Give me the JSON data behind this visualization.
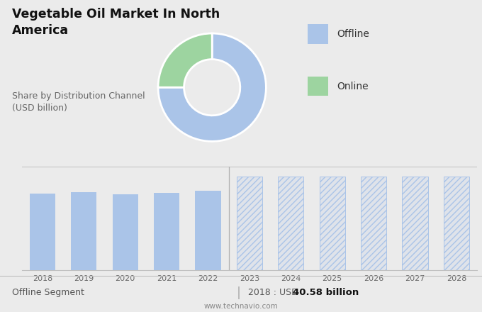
{
  "title_main": "Vegetable Oil Market In North\nAmerica",
  "subtitle": "Share by Distribution Channel\n(USD billion)",
  "donut_values": [
    75,
    25
  ],
  "donut_colors": [
    "#aac4e8",
    "#9dd4a0"
  ],
  "donut_labels": [
    "Offline",
    "Online"
  ],
  "legend_colors": [
    "#aac4e8",
    "#9dd4a0"
  ],
  "bar_years": [
    2018,
    2019,
    2020,
    2021,
    2022
  ],
  "bar_values": [
    40.58,
    41.5,
    40.2,
    41.0,
    42.3
  ],
  "bar_color": "#aac4e8",
  "forecast_years": [
    2023,
    2024,
    2025,
    2026,
    2027,
    2028
  ],
  "forecast_values": [
    50.0,
    50.0,
    50.0,
    50.0,
    50.0,
    50.0
  ],
  "bg_top": "#dcdcdc",
  "bg_bottom": "#ebebeb",
  "footer_left": "Offline Segment",
  "footer_right_label": "2018 : USD ",
  "footer_right_bold": "40.58 billion",
  "footer_website": "www.technavio.com",
  "ymin": 0,
  "ymax": 55,
  "fig_width": 6.8,
  "fig_height": 4.4,
  "dpi": 100
}
